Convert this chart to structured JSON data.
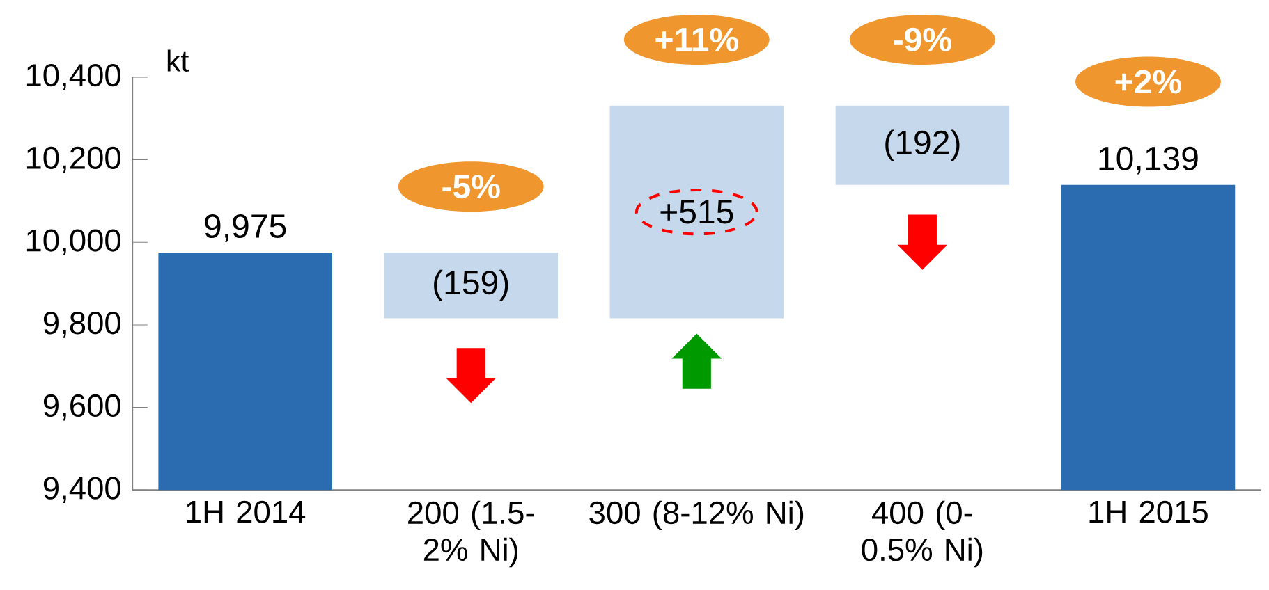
{
  "chart_data": {
    "type": "bar",
    "ylabel": "kt",
    "categories": [
      "1H 2014",
      "200 (1.5-2% Ni)",
      "300 (8-12% Ni)",
      "400 (0-0.5% Ni)",
      "1H 2015"
    ],
    "values": [
      9975,
      -159,
      515,
      -192,
      10139
    ],
    "base": [
      null,
      9975,
      9816,
      10331,
      null
    ],
    "colors": [
      "#2b6cb0",
      "#c6d9ec",
      "#c6d9ec",
      "#c6d9ec",
      "#2b6cb0"
    ],
    "value_labels": [
      "9,975",
      "(159)",
      "+515",
      "(192)",
      "10,139"
    ],
    "ylim": [
      9400,
      10400
    ],
    "yticks": [
      {
        "value": 9400,
        "label": "9,400"
      },
      {
        "value": 9600,
        "label": "9,600"
      },
      {
        "value": 9800,
        "label": "9,800"
      },
      {
        "value": 10000,
        "label": "10,000"
      },
      {
        "value": 10200,
        "label": "10,200"
      },
      {
        "value": 10400,
        "label": "10,400"
      }
    ],
    "annotations": [
      "-5%",
      "+11%",
      "-9%",
      "+2%"
    ]
  }
}
